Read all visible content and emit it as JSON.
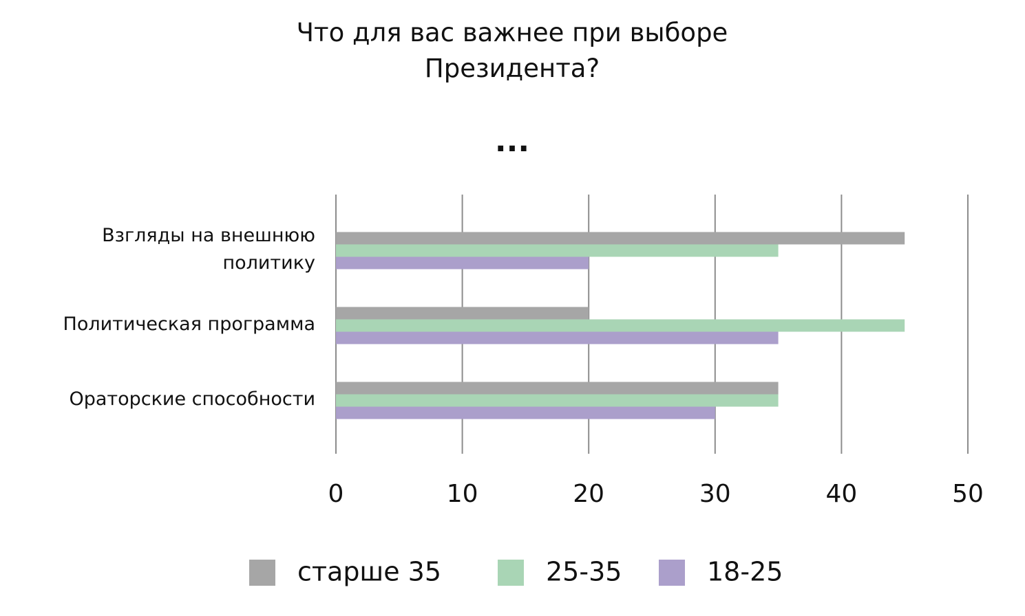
{
  "chart_data": {
    "type": "bar",
    "orientation": "horizontal",
    "title": "Что для вас важнее при выборе Президента?",
    "subtitle": "...",
    "categories": [
      "Взгляды на внешнюю политику",
      "Политическая программа",
      "Ораторские способности"
    ],
    "series": [
      {
        "name": "старше 35",
        "color": "#a6a6a6",
        "values": [
          45,
          20,
          35
        ]
      },
      {
        "name": "25-35",
        "color": "#a9d5b5",
        "values": [
          35,
          45,
          35
        ]
      },
      {
        "name": "18-25",
        "color": "#ab9fcb",
        "values": [
          20,
          35,
          30
        ]
      }
    ],
    "xlim": [
      0,
      50
    ],
    "xticks": [
      0,
      10,
      20,
      30,
      40,
      50
    ],
    "grid": true,
    "legend": "bottom"
  }
}
